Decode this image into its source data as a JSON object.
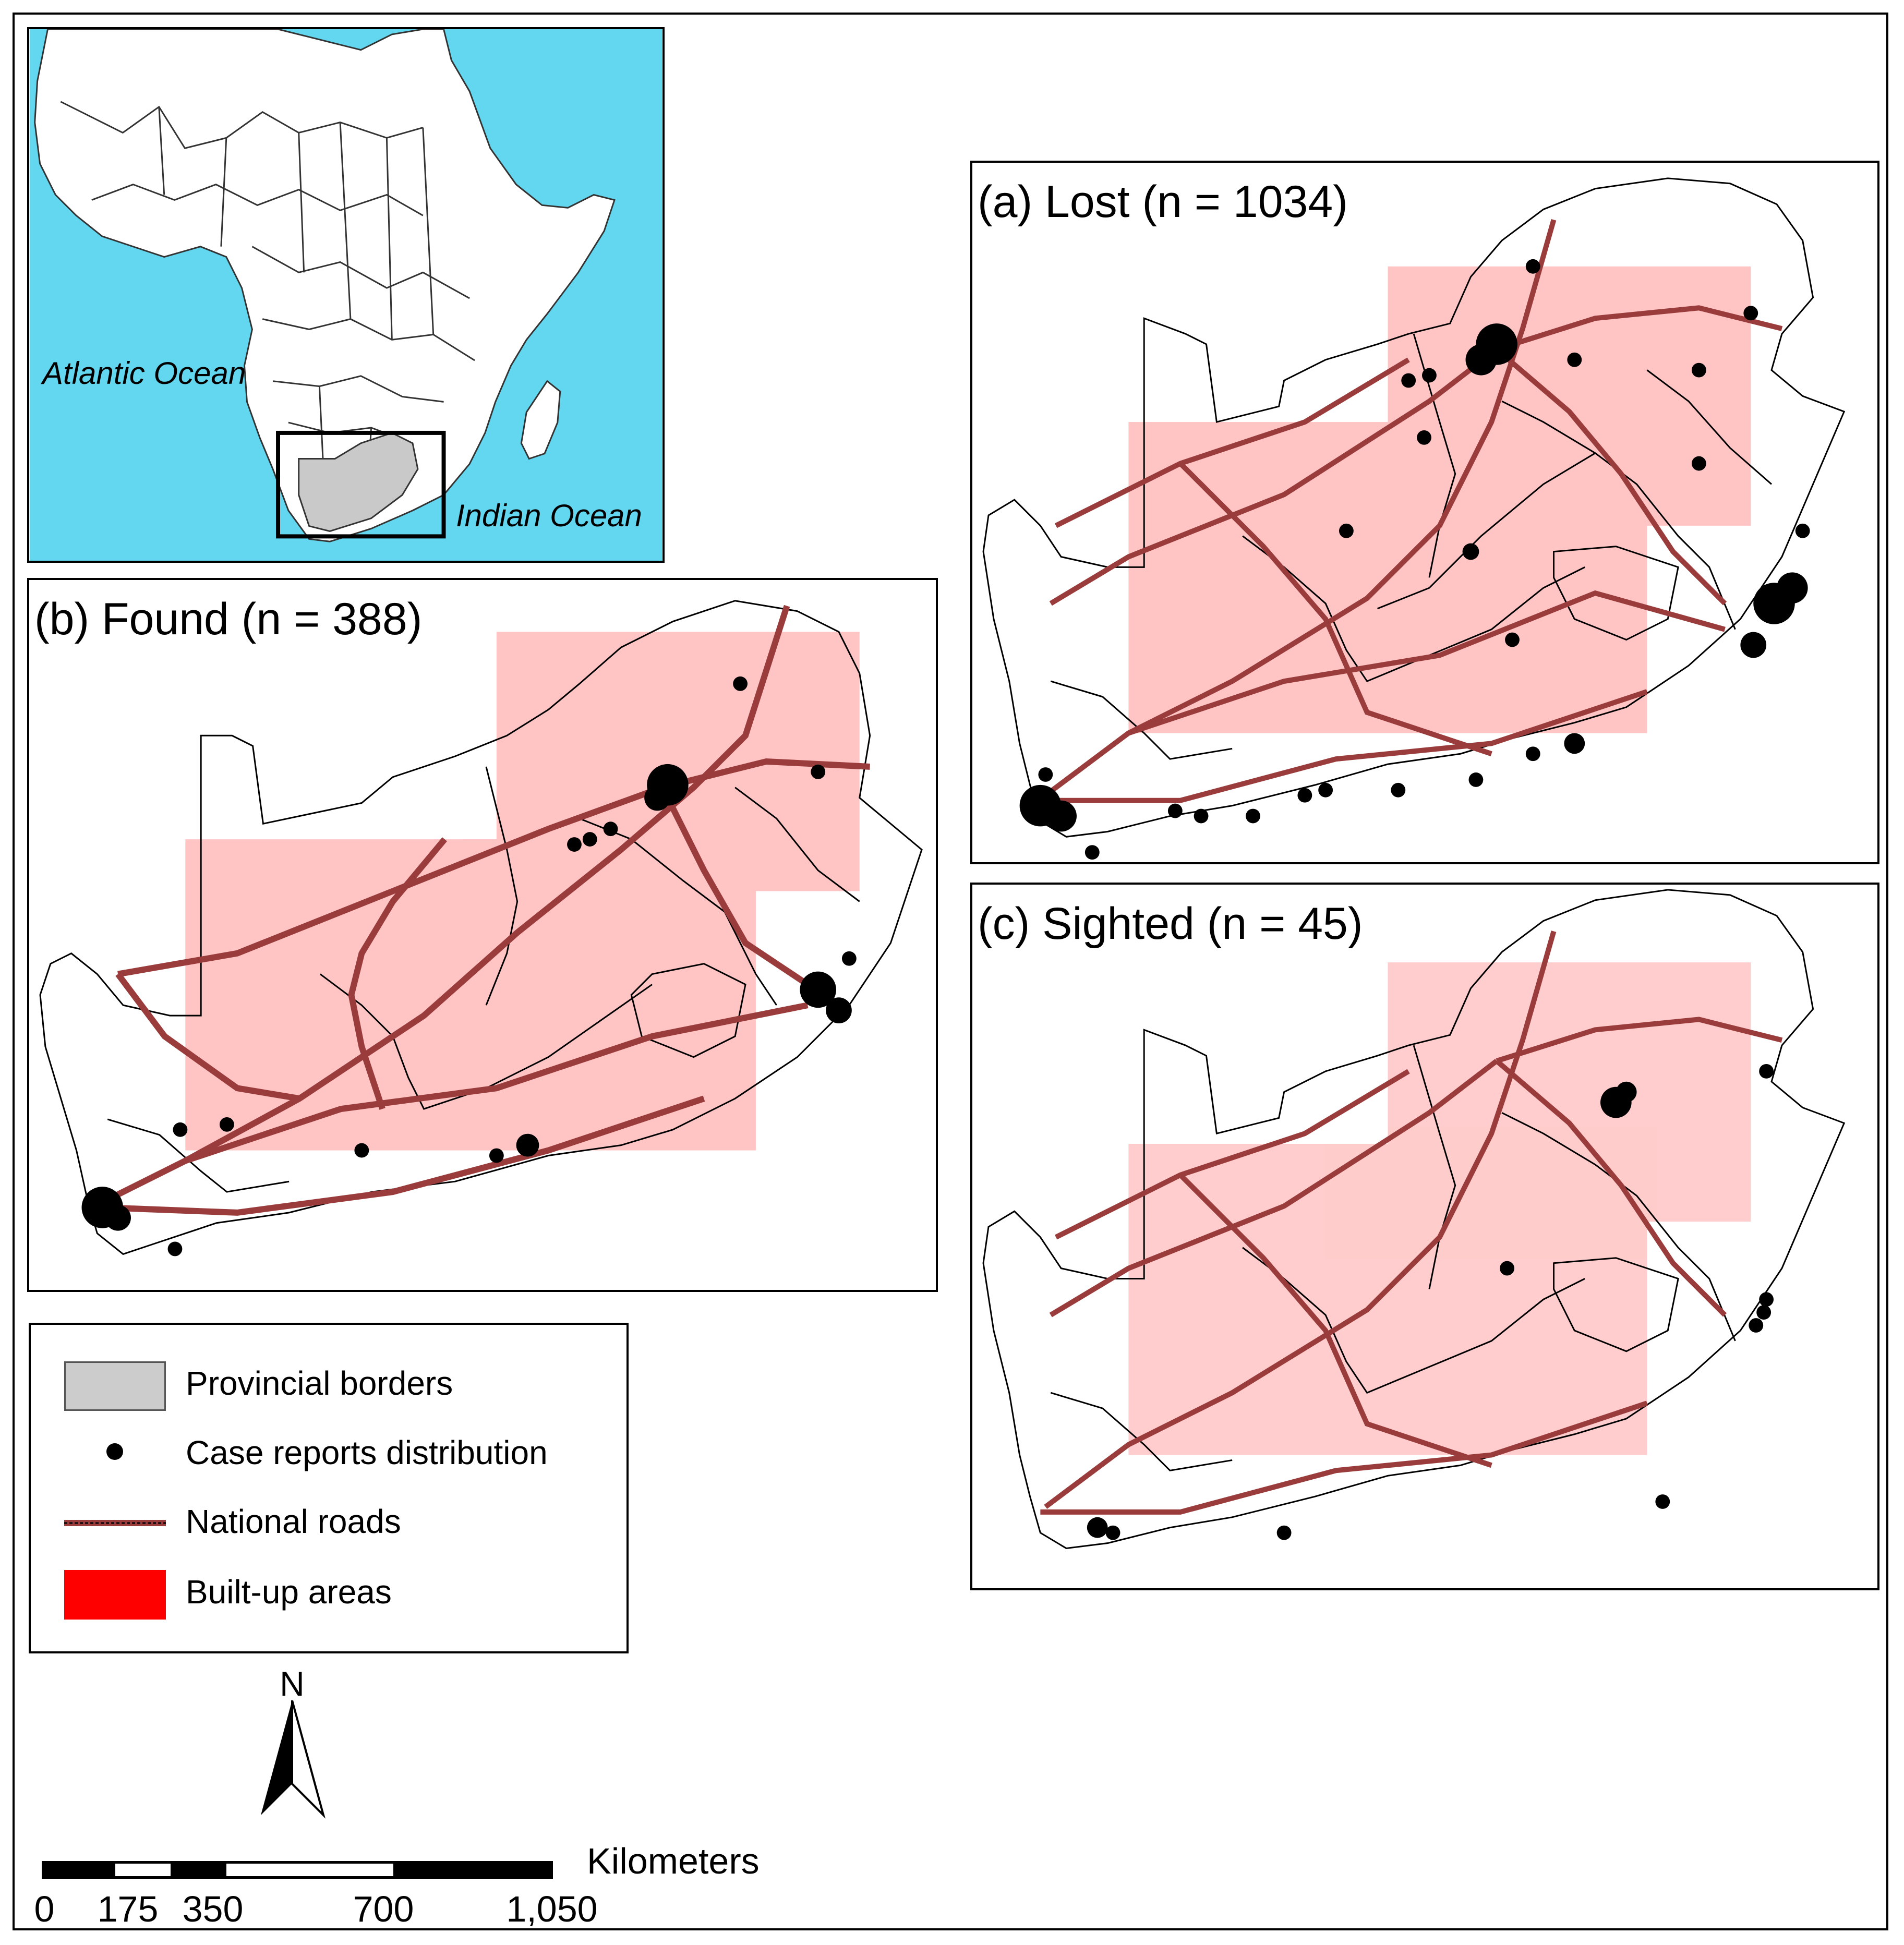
{
  "inset": {
    "ocean_labels": [
      "Atlantic Ocean",
      "Indian Ocean"
    ],
    "colors": {
      "ocean": "#62d7ef",
      "land": "#ffffff",
      "focus": "#c9c9c9"
    }
  },
  "panels": [
    {
      "id": "a",
      "title": "(a) Lost (n = 1034)"
    },
    {
      "id": "b",
      "title": "(b) Found (n = 388)"
    },
    {
      "id": "c",
      "title": "(c) Sighted (n = 45)"
    }
  ],
  "legend": {
    "items": [
      {
        "label": "Provincial borders",
        "symbol": "grey-box",
        "color": "#cccccc"
      },
      {
        "label": "Case reports distribution",
        "symbol": "black-dot",
        "color": "#000000"
      },
      {
        "label": "National roads",
        "symbol": "road-line",
        "color": "#9a3c3c"
      },
      {
        "label": "Built-up areas",
        "symbol": "red-box",
        "color": "#ff0000"
      }
    ]
  },
  "north_arrow": {
    "label": "N"
  },
  "scale_bar": {
    "unit": "Kilometers",
    "ticks": [
      "0",
      "175",
      "350",
      "700",
      "1,050"
    ]
  }
}
